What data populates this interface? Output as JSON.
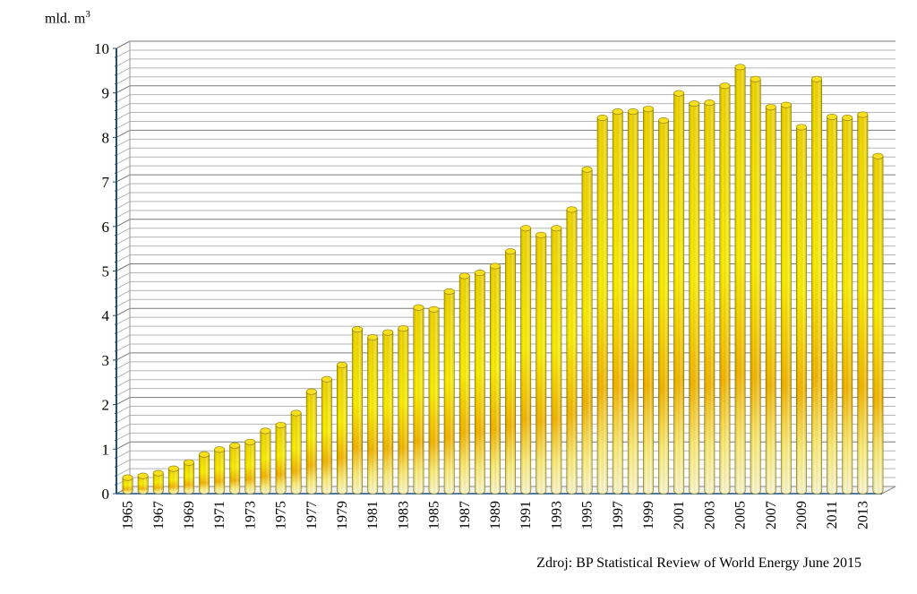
{
  "chart_data": {
    "type": "bar",
    "ylabel_text": "mld. m",
    "ylabel_superscript": "3",
    "ylim": [
      0,
      10
    ],
    "yticks": [
      "0",
      "1",
      "2",
      "3",
      "4",
      "5",
      "6",
      "7",
      "8",
      "9",
      "10"
    ],
    "grid": true,
    "categories": [
      "1965",
      "1966",
      "1967",
      "1968",
      "1969",
      "1970",
      "1971",
      "1972",
      "1973",
      "1974",
      "1975",
      "1976",
      "1977",
      "1978",
      "1979",
      "1980",
      "1981",
      "1982",
      "1983",
      "1984",
      "1985",
      "1986",
      "1987",
      "1988",
      "1989",
      "1990",
      "1991",
      "1992",
      "1993",
      "1994",
      "1995",
      "1996",
      "1997",
      "1998",
      "1999",
      "2000",
      "2001",
      "2002",
      "2003",
      "2004",
      "2005",
      "2006",
      "2007",
      "2008",
      "2009",
      "2010",
      "2011",
      "2012",
      "2013",
      "2014"
    ],
    "xtick_labels": [
      "1965",
      "1967",
      "1969",
      "1971",
      "1973",
      "1975",
      "1977",
      "1979",
      "1981",
      "1983",
      "1985",
      "1987",
      "1989",
      "1991",
      "1993",
      "1995",
      "1997",
      "1999",
      "2001",
      "2003",
      "2005",
      "2007",
      "2009",
      "2011",
      "2013"
    ],
    "values": [
      0.3,
      0.34,
      0.4,
      0.5,
      0.64,
      0.82,
      0.93,
      1.02,
      1.1,
      1.35,
      1.48,
      1.75,
      2.23,
      2.51,
      2.83,
      3.63,
      3.45,
      3.56,
      3.65,
      4.12,
      4.08,
      4.48,
      4.83,
      4.9,
      5.05,
      5.38,
      5.9,
      5.75,
      5.9,
      6.32,
      7.22,
      8.38,
      8.52,
      8.52,
      8.58,
      8.32,
      8.93,
      8.7,
      8.72,
      9.1,
      9.52,
      9.25,
      8.62,
      8.67,
      8.17,
      9.25,
      8.4,
      8.38,
      8.45,
      7.52
    ]
  },
  "source_text": "Zdroj: BP Statistical Review of World Energy June 2015"
}
